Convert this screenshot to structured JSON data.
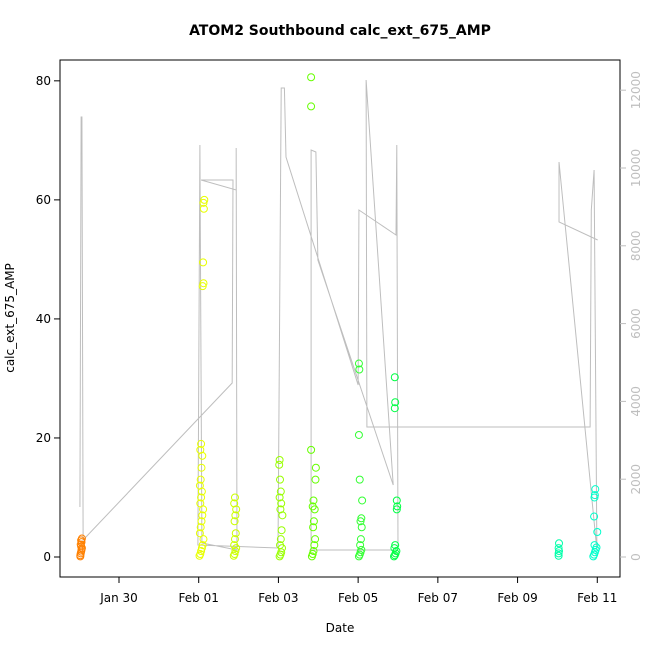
{
  "chart_data": {
    "type": "scatter",
    "title": "ATOM2 Southbound calc_ext_675_AMP",
    "x_label": "Date",
    "y_label": "calc_ext_675_AMP",
    "xlim": [
      28.52,
      42.57
    ],
    "xticks": [
      {
        "value": 30,
        "label": "Jan 30"
      },
      {
        "value": 32,
        "label": "Feb 01"
      },
      {
        "value": 34,
        "label": "Feb 03"
      },
      {
        "value": 36,
        "label": "Feb 05"
      },
      {
        "value": 38,
        "label": "Feb 07"
      },
      {
        "value": 40,
        "label": "Feb 09"
      },
      {
        "value": 42,
        "label": "Feb 11"
      }
    ],
    "ylim": [
      -3.36,
      83.5
    ],
    "yticks": [
      0,
      20,
      40,
      60,
      80
    ],
    "y2lim": [
      -514,
      12776
    ],
    "y2ticks": [
      0,
      2000,
      4000,
      6000,
      8000,
      10000,
      12000
    ],
    "series": [
      {
        "type": "line",
        "axis": "y2",
        "color": "#bebebe",
        "x": [
          29.02,
          29.05,
          29.07,
          29.1,
          32.84,
          32.86,
          32.06,
          32.94,
          32.94,
          32.96,
          32.08,
          32.03,
          31.98,
          33.99,
          34.07,
          34.15,
          34.19,
          36.0,
          36.02,
          36.95,
          36.97,
          37.0,
          34.82,
          34.82,
          34.94,
          34.99,
          36.88,
          36.2,
          36.22,
          41.82,
          41.85,
          41.92,
          41.99,
          41.04,
          41.04,
          42.01
        ],
        "values": [
          1285,
          11311,
          11311,
          437,
          4473,
          9692,
          9692,
          9434,
          10514,
          180,
          360,
          10591,
          308,
          231,
          12057,
          12057,
          10283,
          4422,
          8920,
          8278,
          10591,
          180,
          180,
          10463,
          10411,
          7635,
          1851,
          12262,
          3342,
          3342,
          8920,
          9949,
          180,
          10154,
          8612,
          8149
        ]
      },
      {
        "type": "scatter",
        "color": "#ff8000",
        "x": [
          29.03,
          29.04,
          29.05,
          29.06,
          29.07,
          29.05,
          29.04,
          29.06,
          29.05,
          29.07,
          29.03
        ],
        "values": [
          0.3,
          0.6,
          0.9,
          1.2,
          1.5,
          1.8,
          2.1,
          2.5,
          2.8,
          3.1,
          0.1
        ]
      },
      {
        "type": "scatter",
        "color": "#e8ff00",
        "x": [
          32.02,
          32.04,
          32.06,
          32.08,
          32.1,
          32.12,
          32.03,
          32.05,
          32.07,
          32.09,
          32.11,
          32.04,
          32.06,
          32.08,
          32.03,
          32.05,
          32.07,
          32.09,
          32.04,
          32.06,
          32.1,
          32.12,
          32.11,
          32.13,
          32.12,
          32.14
        ],
        "values": [
          0.2,
          0.5,
          1,
          1.5,
          2,
          3,
          4,
          5,
          6,
          7,
          8,
          9,
          10,
          11,
          12,
          13,
          15,
          17,
          18,
          19,
          45.5,
          46,
          49.5,
          58.5,
          59.5,
          60
        ]
      },
      {
        "type": "scatter",
        "color": "#ccff00",
        "x": [
          32.88,
          32.9,
          32.92,
          32.94,
          32.89,
          32.91,
          32.93,
          32.9,
          32.92,
          32.94,
          32.89,
          32.91
        ],
        "values": [
          0.2,
          0.5,
          1,
          1.5,
          2,
          3,
          4,
          6,
          7,
          8,
          9,
          10
        ]
      },
      {
        "type": "scatter",
        "color": "#99ff00",
        "x": [
          34.03,
          34.05,
          34.07,
          34.09,
          34.04,
          34.06,
          34.08,
          34.1,
          34.05,
          34.07,
          34.03,
          34.06,
          34.04,
          34.02,
          34.03
        ],
        "values": [
          0.1,
          0.4,
          0.8,
          1.5,
          2,
          3,
          4.5,
          7,
          8,
          9,
          10,
          11,
          13,
          15.5,
          16.3
        ]
      },
      {
        "type": "scatter",
        "color": "#66ff00",
        "x": [
          34.84,
          34.86,
          34.88,
          34.9,
          34.92,
          34.87,
          34.89,
          34.91,
          34.86,
          34.88,
          34.93,
          34.94,
          34.82,
          34.82,
          34.82
        ],
        "values": [
          0.1,
          0.5,
          1,
          2,
          3,
          5,
          6,
          8,
          8.5,
          9.5,
          13,
          15,
          18,
          75.7,
          80.6
        ]
      },
      {
        "type": "scatter",
        "color": "#33ff33",
        "x": [
          36.02,
          36.04,
          36.06,
          36.08,
          36.05,
          36.07,
          36.09,
          36.06,
          36.08,
          36.1,
          36.04,
          36.02,
          36.03,
          36.02
        ],
        "values": [
          0.1,
          0.4,
          0.8,
          1.2,
          2,
          3,
          5,
          6,
          6.5,
          9.5,
          13,
          20.5,
          31.5,
          32.5
        ]
      },
      {
        "type": "scatter",
        "color": "#00ff44",
        "x": [
          36.9,
          36.92,
          36.94,
          36.96,
          36.91,
          36.93,
          36.97,
          36.98,
          36.97,
          36.92,
          36.93,
          36.92
        ],
        "values": [
          0.1,
          0.3,
          0.6,
          1,
          1.5,
          2,
          8,
          8.5,
          9.5,
          25,
          26,
          30.2
        ]
      },
      {
        "type": "scatter",
        "color": "#00ffaa",
        "x": [
          41.03,
          41.03,
          41.04,
          41.03,
          41.04
        ],
        "values": [
          0.2,
          0.6,
          1,
          1.5,
          2.3
        ]
      },
      {
        "type": "scatter",
        "color": "#00ffcc",
        "x": [
          41.9,
          41.92,
          41.94,
          41.96,
          41.98,
          41.93,
          42.0,
          41.92,
          41.93,
          41.94,
          41.95
        ],
        "values": [
          0.1,
          0.4,
          0.8,
          1.2,
          1.6,
          2,
          4.2,
          6.8,
          10,
          10.4,
          11.4
        ]
      }
    ]
  }
}
